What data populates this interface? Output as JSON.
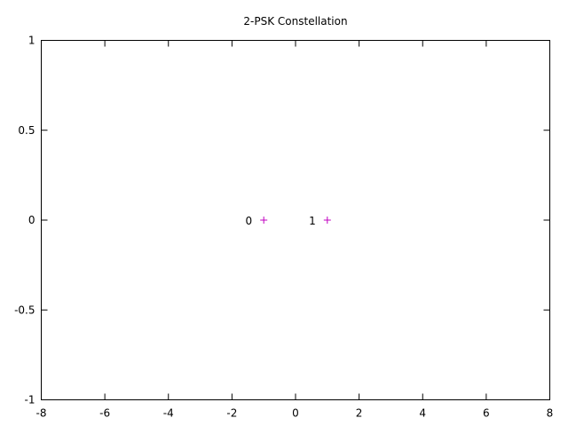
{
  "chart_data": {
    "type": "scatter",
    "title": "2-PSK Constellation",
    "xlabel": "",
    "ylabel": "",
    "xlim": [
      -8,
      8
    ],
    "ylim": [
      -1,
      1
    ],
    "x_ticks": [
      -8,
      -6,
      -4,
      -2,
      0,
      2,
      4,
      6,
      8
    ],
    "y_ticks": [
      -1,
      -0.5,
      0,
      0.5,
      1
    ],
    "x_tick_labels": [
      "-8",
      "-6",
      "-4",
      "-2",
      "0",
      "2",
      "4",
      "6",
      "8"
    ],
    "y_tick_labels": [
      "-1",
      "-0.5",
      "0",
      "0.5",
      "1"
    ],
    "grid": false,
    "legend": "none",
    "marker": "plus",
    "marker_color": "#c000c0",
    "points": [
      {
        "label": "0",
        "x": -1,
        "y": 0
      },
      {
        "label": "1",
        "x": 1,
        "y": 0
      }
    ]
  }
}
